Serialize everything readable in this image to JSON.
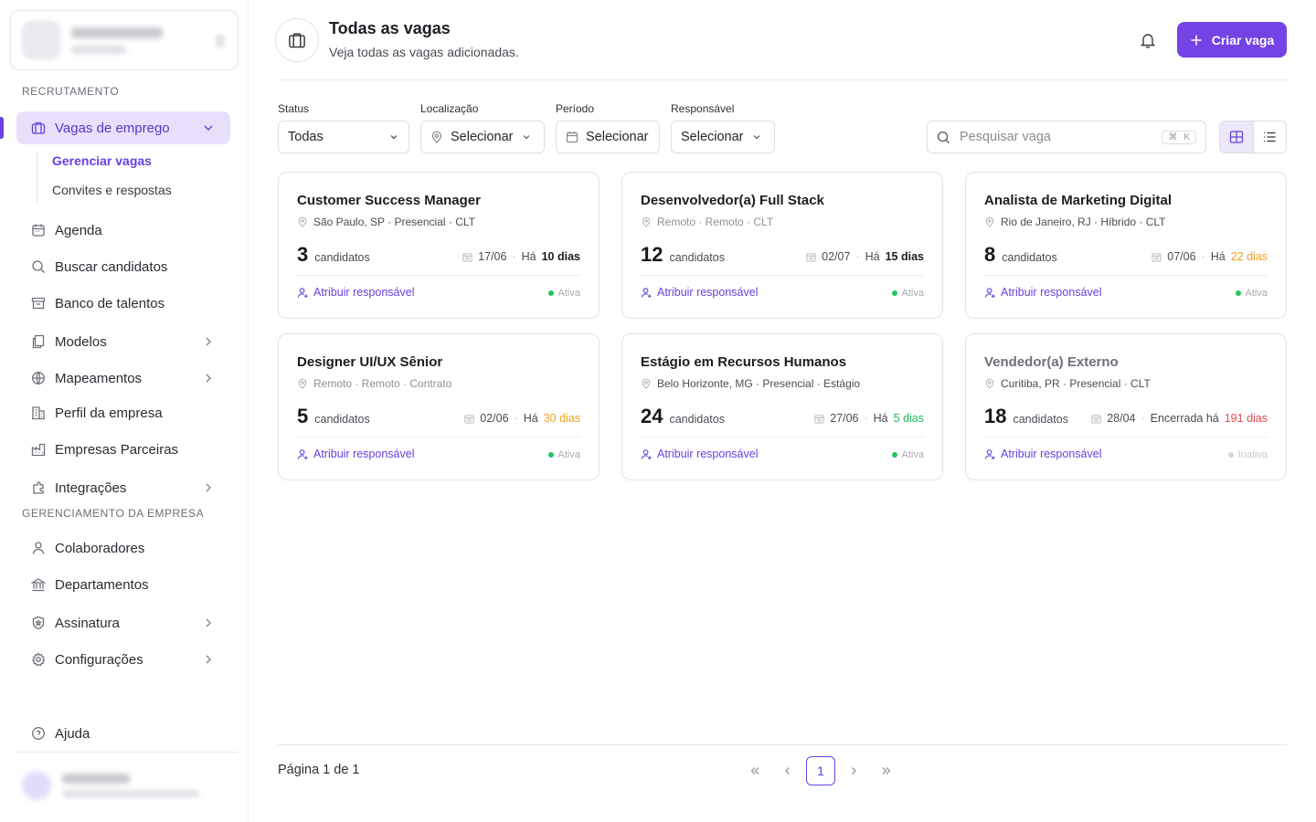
{
  "sidebar": {
    "section_recruitment": "RECRUTAMENTO",
    "section_company": "GERENCIAMENTO DA EMPRESA",
    "items": {
      "vagas": "Vagas de emprego",
      "gerenciar": "Gerenciar vagas",
      "convites": "Convites e respostas",
      "agenda": "Agenda",
      "buscar": "Buscar candidatos",
      "banco": "Banco de talentos",
      "modelos": "Modelos",
      "mapeamentos": "Mapeamentos",
      "perfil": "Perfil da empresa",
      "parceiras": "Empresas Parceiras",
      "integracoes": "Integrações",
      "colaboradores": "Colaboradores",
      "departamentos": "Departamentos",
      "assinatura": "Assinatura",
      "configuracoes": "Configurações",
      "ajuda": "Ajuda"
    }
  },
  "header": {
    "title": "Todas as vagas",
    "subtitle": "Veja todas as vagas adicionadas.",
    "create_label": "Criar vaga"
  },
  "filters": {
    "status_label": "Status",
    "status_value": "Todas",
    "location_label": "Localização",
    "location_value": "Selecionar",
    "period_label": "Período",
    "period_value": "Selecionar",
    "owner_label": "Responsável",
    "owner_value": "Selecionar",
    "search_placeholder": "Pesquisar vaga",
    "search_shortcut": "K"
  },
  "jobs": [
    {
      "title": "Customer Success Manager",
      "location": "São Paulo, SP · Presencial · CLT",
      "count": "3",
      "count_label": "candidatos",
      "date": "17/06",
      "age_prefix": "Há",
      "age": "10 dias",
      "assign": "Atribuir responsável",
      "status": "Ativa"
    },
    {
      "title": "Desenvolvedor(a) Full Stack",
      "location": "Remoto · Remoto · CLT",
      "count": "12",
      "count_label": "candidatos",
      "date": "02/07",
      "age_prefix": "Há",
      "age": "15 dias",
      "assign": "Atribuir responsável",
      "status": "Ativa"
    },
    {
      "title": "Analista de Marketing Digital",
      "location": "Rio de Janeiro, RJ · Híbrido · CLT",
      "count": "8",
      "count_label": "candidatos",
      "date": "07/06",
      "age_prefix": "Há",
      "age": "22 dias",
      "assign": "Atribuir responsável",
      "status": "Ativa"
    },
    {
      "title": "Designer UI/UX Sênior",
      "location": "Remoto · Remoto · Contrato",
      "count": "5",
      "count_label": "candidatos",
      "date": "02/06",
      "age_prefix": "Há",
      "age": "30 dias",
      "assign": "Atribuir responsável",
      "status": "Ativa"
    },
    {
      "title": "Estágio em Recursos Humanos",
      "location": "Belo Horizonte, MG · Presencial · Estágio",
      "count": "24",
      "count_label": "candidatos",
      "date": "27/06",
      "age_prefix": "Há",
      "age": "5 dias",
      "assign": "Atribuir responsável",
      "status": "Ativa"
    },
    {
      "title": "Vendedor(a) Externo",
      "location": "Curitiba, PR · Presencial · CLT",
      "count": "18",
      "count_label": "candidatos",
      "date": "28/04",
      "age_prefix": "Encerrada há",
      "age": "191 dias",
      "assign": "Atribuir responsável",
      "status": "Inativa"
    }
  ],
  "colors": {
    "accent": "#7343e6",
    "active_green": "#22c55e",
    "warning_orange": "#f0a020",
    "danger_red": "#e5484d"
  },
  "pagination": {
    "info": "Página 1 de 1",
    "current": "1"
  }
}
